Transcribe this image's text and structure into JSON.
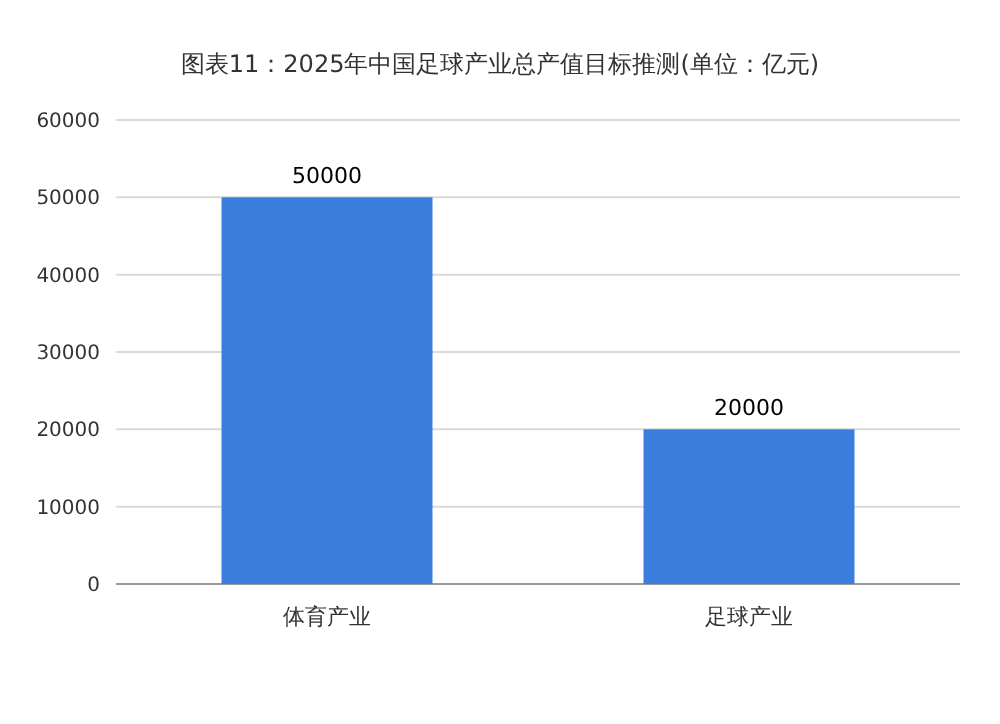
{
  "chart_data": {
    "type": "bar",
    "title": "图表11：2025年中国足球产业总产值目标推测(单位：亿元)",
    "categories": [
      "体育产业",
      "足球产业"
    ],
    "values": [
      50000,
      20000
    ],
    "color": "#3b7ddd",
    "ylim": [
      0,
      60000
    ],
    "yticks": [
      0,
      10000,
      20000,
      30000,
      40000,
      50000,
      60000
    ],
    "grid": "y",
    "data_labels": true
  }
}
